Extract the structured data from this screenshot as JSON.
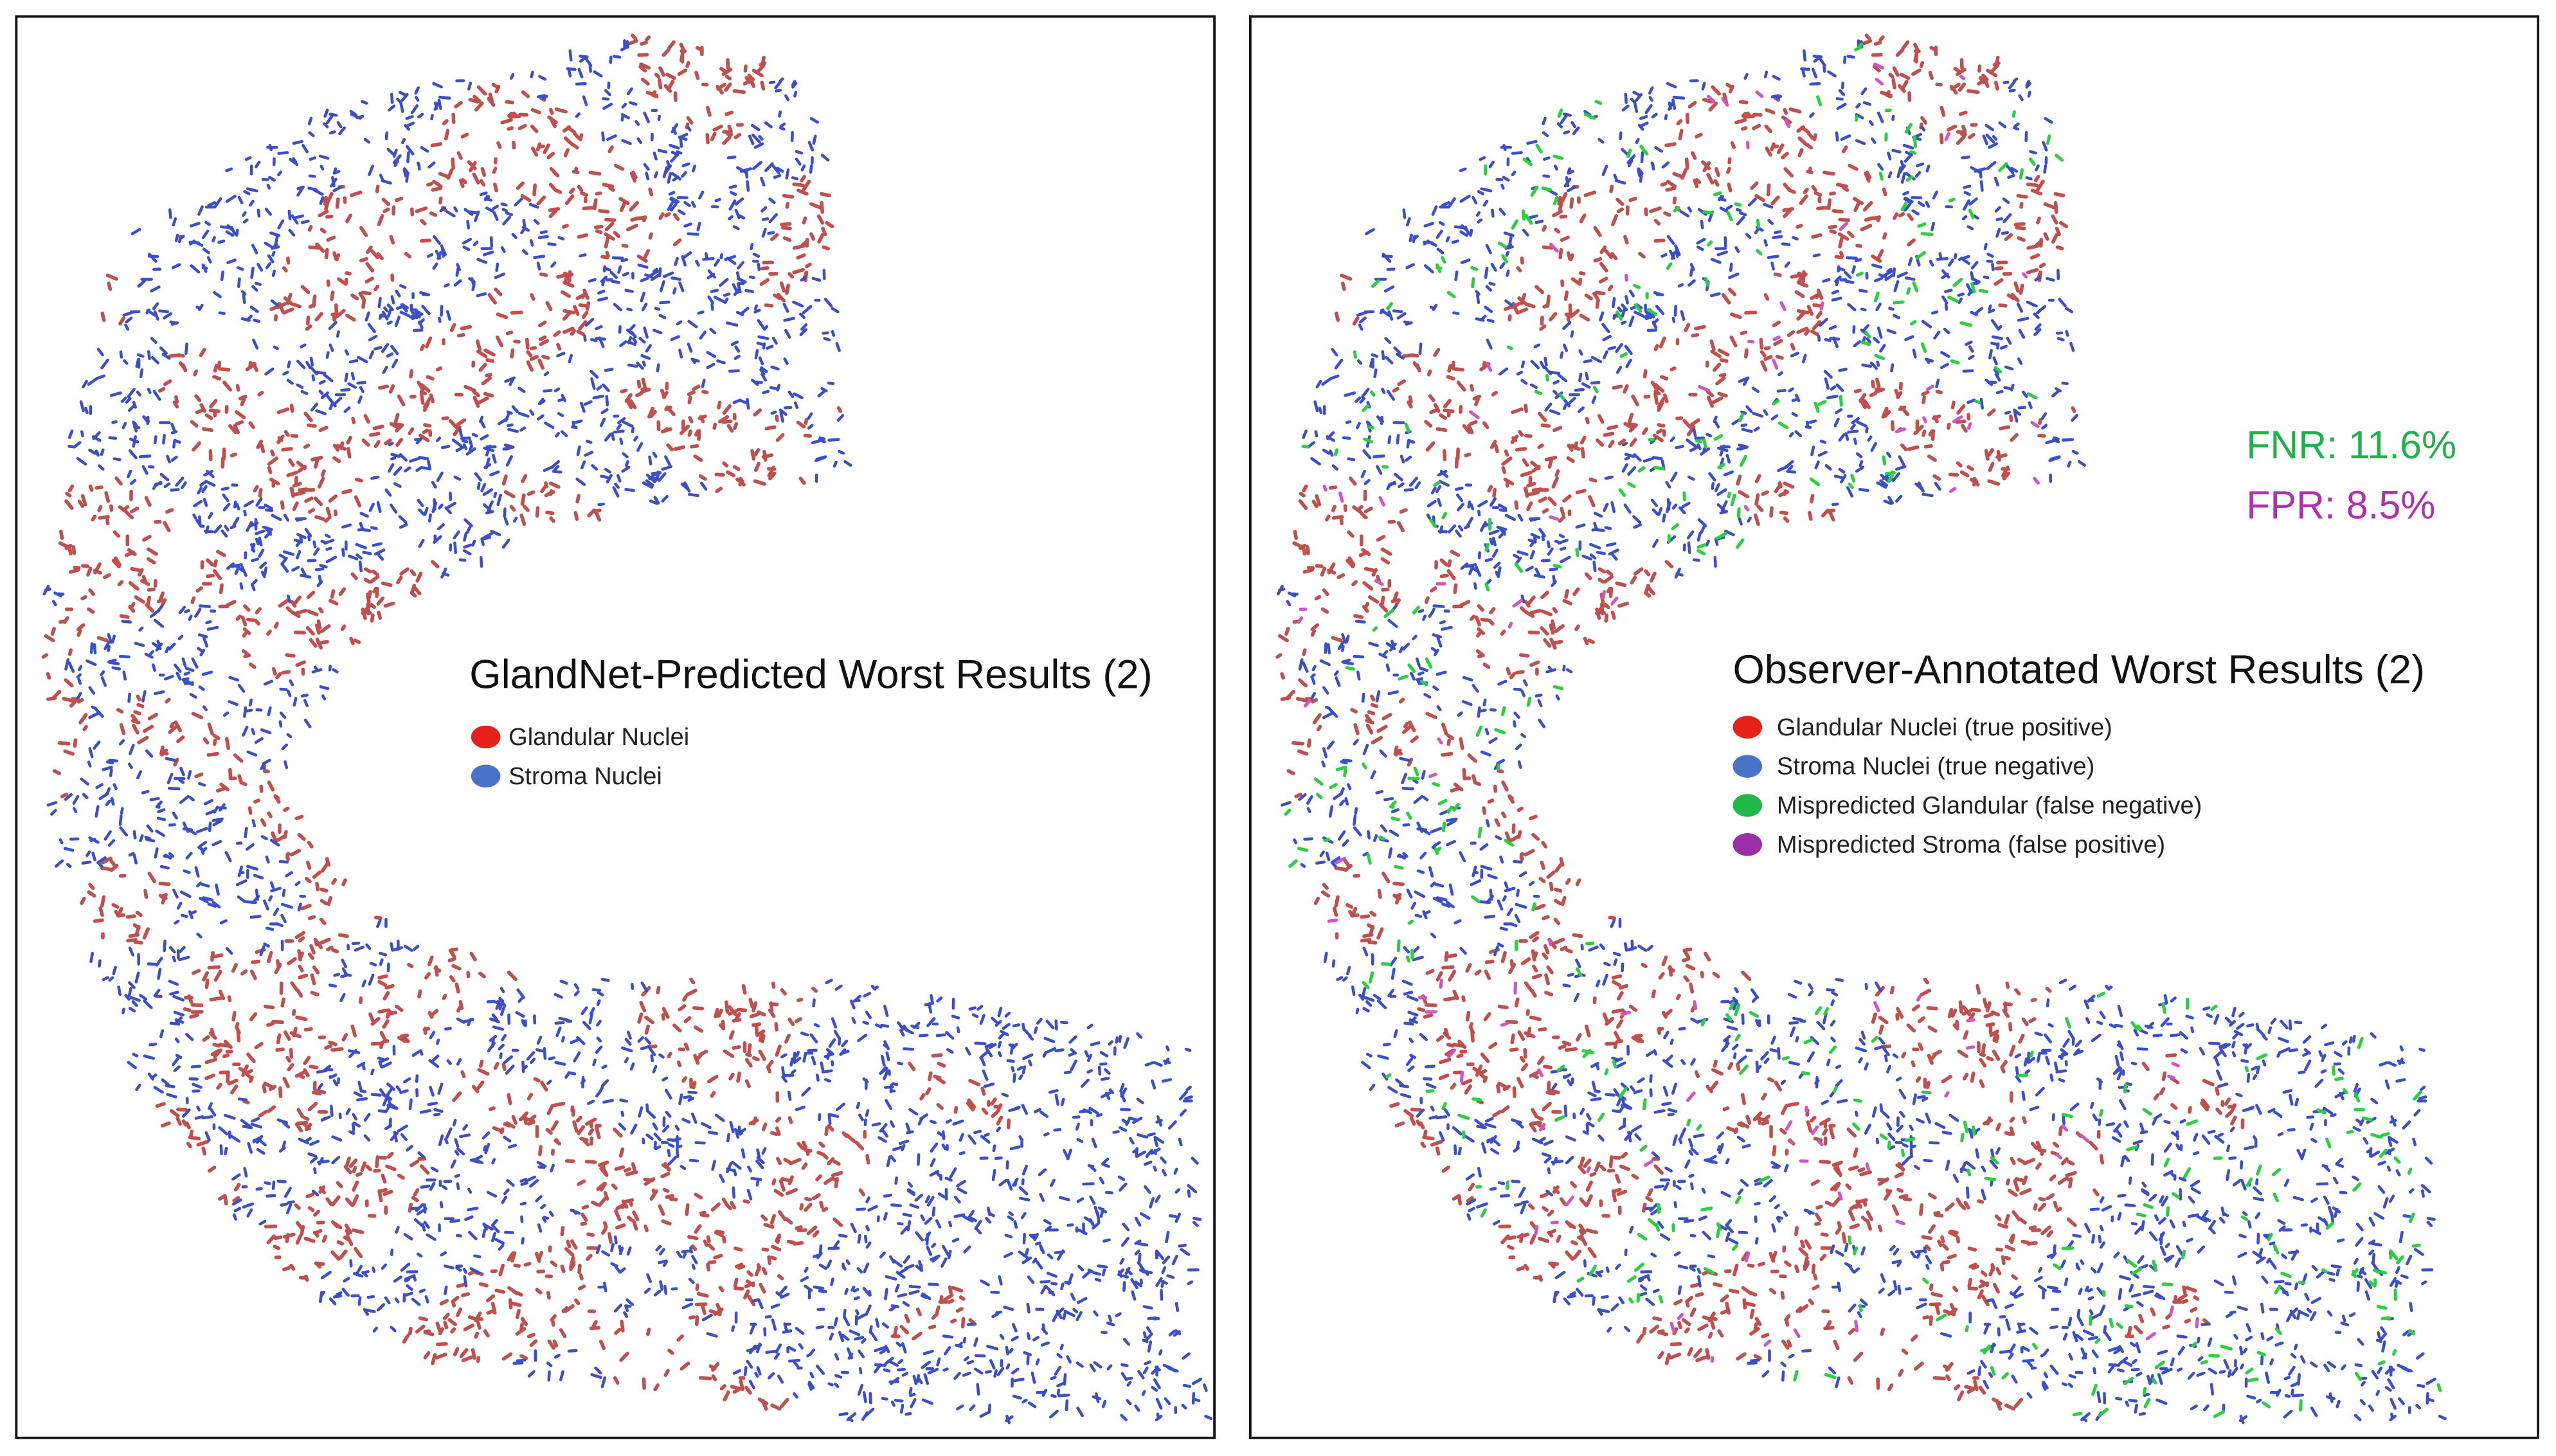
{
  "left_panel": {
    "title": "GlandNet-Predicted Worst Results (2)",
    "legend": [
      "Glandular Nuclei",
      "Stroma Nuclei"
    ]
  },
  "right_panel": {
    "title": "Observer-Annotated Worst Results (2)",
    "metrics": [
      "FNR: 11.6%",
      "FPR: 8.5%"
    ],
    "legend": [
      "Glandular Nuclei (true positive)",
      "Stroma Nuclei (true negative)",
      "Mispredicted Glandular (false negative)",
      "Mispredicted Stroma (false positive)"
    ]
  }
}
